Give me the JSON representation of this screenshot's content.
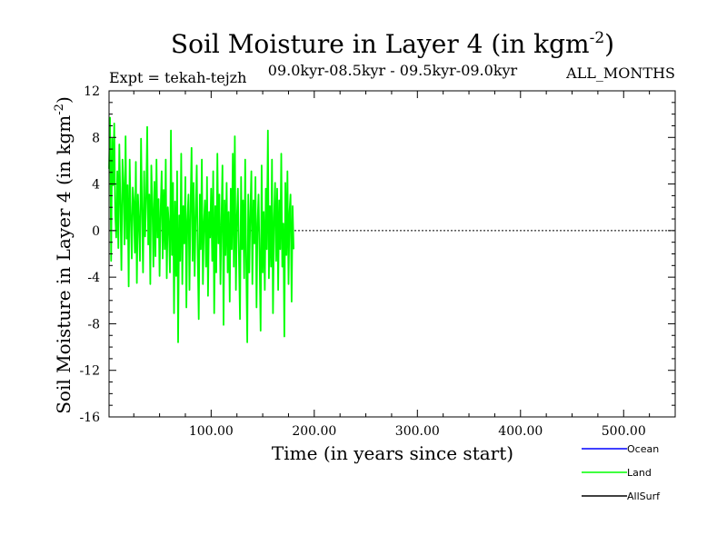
{
  "chart_data": {
    "type": "line",
    "title": "Soil Moisture in Layer 4 (in kgm",
    "title_sup": "-2",
    "title_close": ")",
    "expt_label": "Expt = tekah-tejzh",
    "period_label": "09.0kyr-08.5kyr - 09.5kyr-09.0kyr",
    "months_label": "ALL_MONTHS",
    "xlabel": "Time (in years since start)",
    "ylabel": "Soil Moisture in Layer 4 (in kgm",
    "ylabel_sup": "-2",
    "ylabel_close": ")",
    "xlim": [
      1,
      550
    ],
    "ylim": [
      -16,
      12
    ],
    "x_ticks": [
      {
        "value": 100,
        "label": "100.00"
      },
      {
        "value": 200,
        "label": "200.00"
      },
      {
        "value": 300,
        "label": "300.00"
      },
      {
        "value": 400,
        "label": "400.00"
      },
      {
        "value": 500,
        "label": "500.00"
      }
    ],
    "y_ticks": [
      {
        "value": 12,
        "label": "12"
      },
      {
        "value": 8,
        "label": "8"
      },
      {
        "value": 4,
        "label": "4"
      },
      {
        "value": 0,
        "label": "0"
      },
      {
        "value": -4,
        "label": "-4"
      },
      {
        "value": -8,
        "label": "-8"
      },
      {
        "value": -12,
        "label": "-12"
      },
      {
        "value": -16,
        "label": "-16"
      }
    ],
    "zero_line": 0,
    "series": [
      {
        "name": "Ocean",
        "color": "#0000ff",
        "values": []
      },
      {
        "name": "Land",
        "color": "#00ff00",
        "x_start": 1,
        "x_step": 1,
        "values": [
          5.3,
          9.7,
          -2.6,
          7.9,
          3.9,
          9.2,
          1.4,
          -0.6,
          5.1,
          -1.5,
          7.4,
          2.2,
          -3.4,
          6.1,
          4.0,
          -1.2,
          8.1,
          -0.7,
          3.9,
          -4.8,
          6.1,
          1.5,
          -2.4,
          3.7,
          2.5,
          -1.9,
          5.9,
          -4.5,
          3.1,
          0.6,
          -2.6,
          7.9,
          1.9,
          -3.6,
          5.1,
          -0.5,
          2.9,
          8.9,
          -1.2,
          3.1,
          -4.6,
          5.6,
          2.0,
          -3.1,
          4.2,
          -2.2,
          6.1,
          -0.6,
          2.7,
          -3.9,
          1.6,
          5.1,
          -2.4,
          3.5,
          -1.6,
          6.1,
          -4.1,
          2.0,
          0.5,
          -3.6,
          8.6,
          -2.1,
          4.1,
          -7.1,
          2.5,
          -3.9,
          5.1,
          -9.6,
          1.3,
          -2.6,
          6.6,
          -4.6,
          2.1,
          -1.1,
          4.6,
          -6.6,
          0.9,
          3.1,
          -5.1,
          1.6,
          7.1,
          -2.6,
          4.1,
          -3.9,
          1.1,
          5.6,
          -2.1,
          -7.6,
          3.1,
          -1.6,
          6.1,
          -4.6,
          0.6,
          2.6,
          -3.1,
          4.6,
          -5.6,
          1.6,
          -0.6,
          3.6,
          -2.6,
          5.1,
          -7.1,
          2.1,
          -3.6,
          6.6,
          -1.1,
          3.1,
          -4.6,
          0.9,
          5.6,
          -8.1,
          2.6,
          -2.1,
          4.1,
          -3.6,
          1.6,
          -6.1,
          3.6,
          -1.6,
          6.6,
          -3.1,
          8.1,
          -5.1,
          1.1,
          3.6,
          -2.6,
          -7.6,
          4.6,
          -1.6,
          2.6,
          -4.1,
          6.1,
          -2.6,
          -9.6,
          3.1,
          -3.6,
          1.6,
          5.1,
          -4.6,
          2.6,
          -1.1,
          4.6,
          -6.6,
          0.6,
          3.1,
          -2.6,
          -8.6,
          5.6,
          -3.6,
          1.6,
          -5.1,
          3.6,
          -1.6,
          8.6,
          -4.1,
          2.1,
          -3.1,
          6.1,
          -7.1,
          1.1,
          4.1,
          -2.6,
          3.6,
          -5.1,
          2.6,
          -1.6,
          6.6,
          -3.1,
          0.6,
          -9.1,
          4.1,
          -2.1,
          5.1,
          -4.6,
          1.6,
          3.1,
          -6.1,
          2.1,
          -1.6
        ]
      },
      {
        "name": "AllSurf",
        "color": "#000000",
        "values": []
      }
    ]
  }
}
